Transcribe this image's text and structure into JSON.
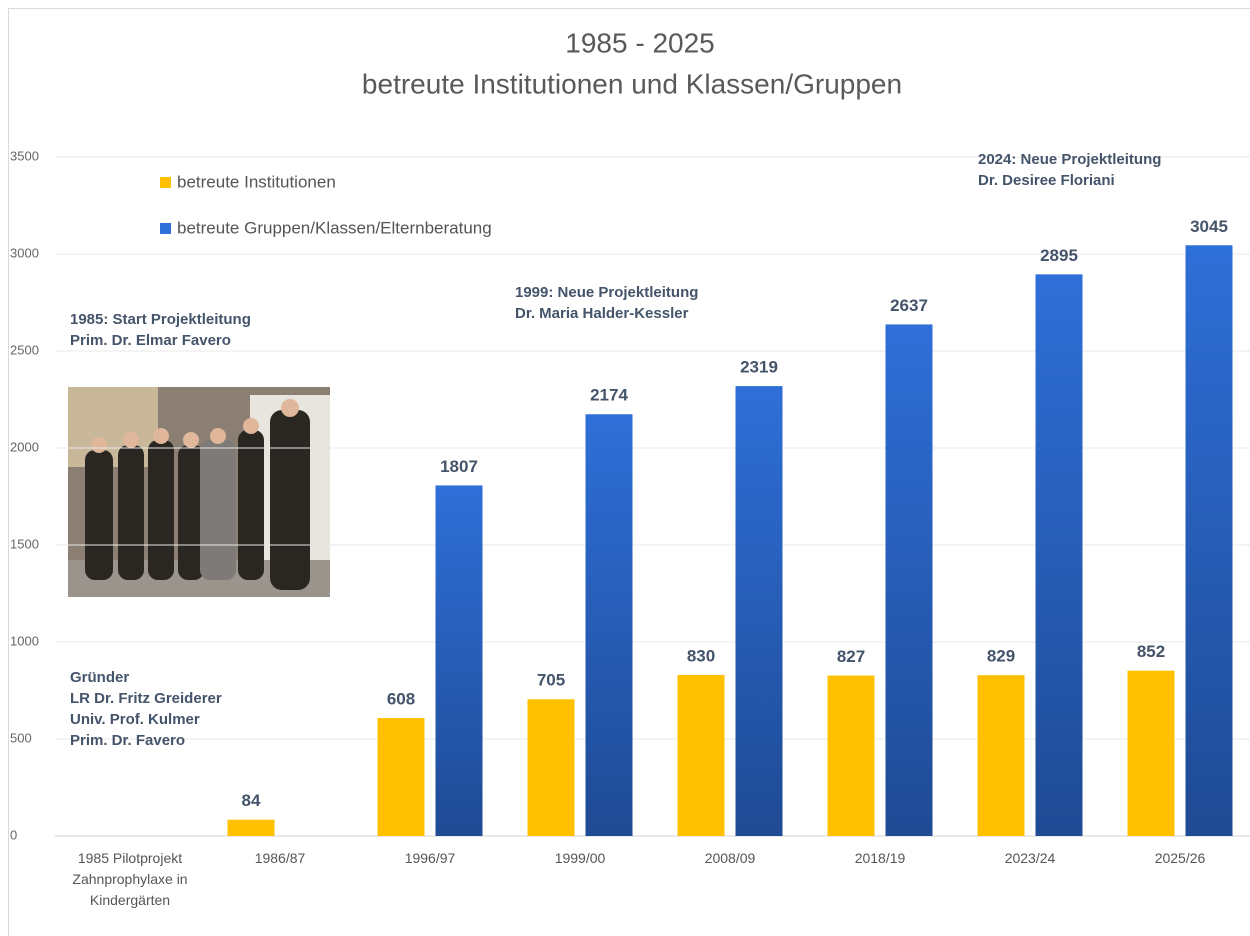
{
  "chart_data": {
    "type": "bar",
    "title": "1985 - 2025",
    "subtitle": "betreute Institutionen und Klassen/Gruppen",
    "categories": [
      "1985 Pilotprojekt Zahnprophylaxe in Kindergärten",
      "1986/87",
      "1996/97",
      "1999/00",
      "2008/09",
      "2018/19",
      "2023/24",
      "2025/26"
    ],
    "series": [
      {
        "name": "betreute Institutionen",
        "color": "#ffc000",
        "values": [
          null,
          84,
          608,
          705,
          830,
          827,
          829,
          852
        ]
      },
      {
        "name": "betreute Gruppen/Klassen/Elternberatung",
        "color": "#2e6fd8",
        "values": [
          null,
          null,
          1807,
          2174,
          2319,
          2637,
          2895,
          3045
        ]
      }
    ],
    "ylim": [
      0,
      3500
    ],
    "yticks": [
      0,
      500,
      1000,
      1500,
      2000,
      2500,
      3000,
      3500
    ],
    "grid": true,
    "annotations": [
      [
        "1985: Start Projektleitung",
        "Prim. Dr. Elmar Favero"
      ],
      [
        "1999: Neue Projektleitung",
        "Dr. Maria Halder-Kessler"
      ],
      [
        "2024: Neue Projektleitung",
        "Dr. Desiree Floriani"
      ],
      [
        "Gründer",
        "LR Dr. Fritz Greiderer",
        "Univ. Prof. Kulmer",
        "Prim. Dr. Favero"
      ]
    ]
  }
}
